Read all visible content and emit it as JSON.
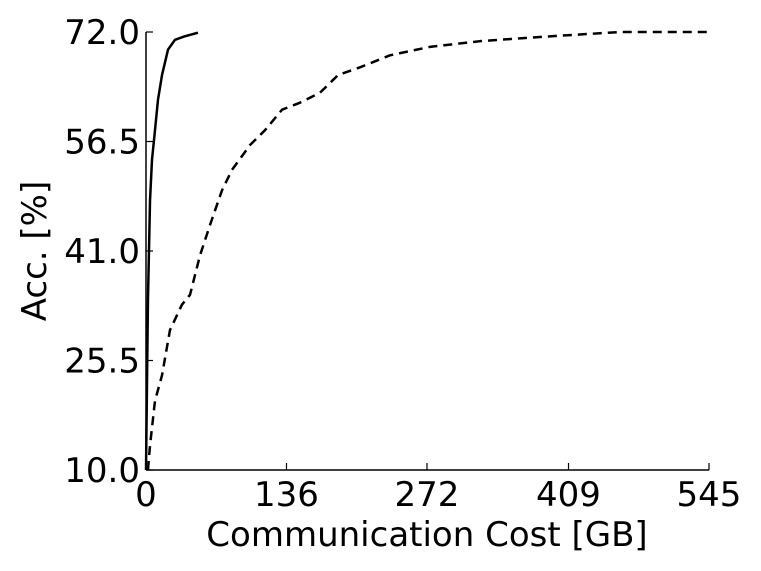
{
  "chart_data": {
    "type": "line",
    "xlabel": "Communication Cost [GB]",
    "ylabel": "Acc. [%]",
    "xlim": [
      0,
      545
    ],
    "ylim": [
      10,
      72
    ],
    "xticks": [
      0,
      136,
      272,
      409,
      545
    ],
    "yticks": [
      {
        "value": 10,
        "label": "10.0"
      },
      25.5,
      {
        "value": 41,
        "label": "41.0"
      },
      56.5,
      {
        "value": 72,
        "label": "72.0"
      }
    ],
    "grid": false,
    "series": [
      {
        "color": "#000000",
        "linestyle": "solid",
        "x": [
          0,
          1.9,
          3.9,
          5.8,
          8.7,
          11.6,
          15.5,
          21.3,
          28.1,
          37.8,
          50.3
        ],
        "values": [
          10,
          34.1,
          48.2,
          53.9,
          58.1,
          62.4,
          65.9,
          69.5,
          70.9,
          71.4,
          71.9
        ]
      },
      {
        "color": "#000000",
        "linestyle": "dashed",
        "x": [
          1.9,
          3.9,
          8.7,
          15.5,
          23.2,
          34.8,
          42.6,
          52.3,
          62.0,
          73.6,
          83.3,
          100.7,
          115.2,
          131.7,
          149.1,
          168.4,
          185.9,
          207.2,
          236.2,
          274.9,
          323.3,
          381.4,
          458.9,
          545
        ],
        "values": [
          10,
          13.5,
          19.8,
          23.4,
          29.8,
          33.4,
          34.8,
          40.4,
          44.7,
          49.6,
          52.5,
          56.0,
          58.1,
          61.0,
          62.0,
          63.4,
          65.9,
          67.0,
          68.7,
          69.9,
          70.7,
          71.3,
          72,
          72
        ]
      }
    ]
  }
}
